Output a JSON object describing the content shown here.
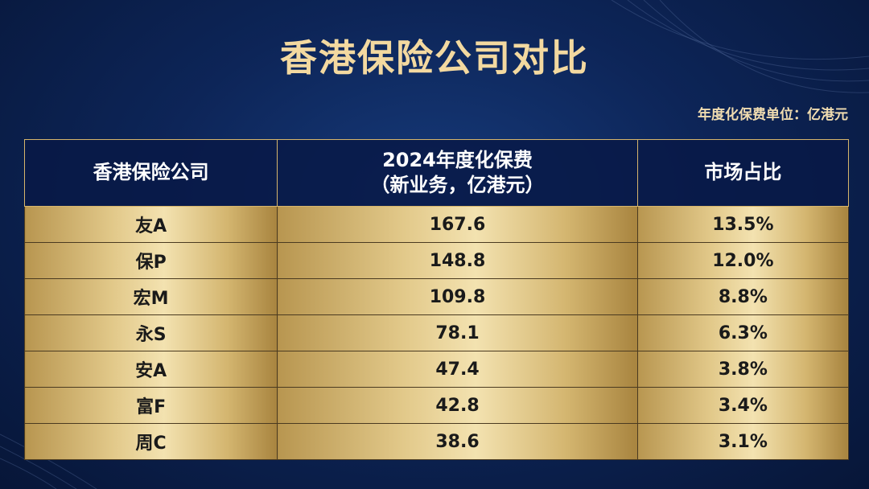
{
  "title": "香港保险公司对比",
  "unit_note": "年度化保费单位：亿港元",
  "table": {
    "headers": [
      [
        "香港保险公司"
      ],
      [
        "2024年度化保费",
        "（新业务，亿港元）"
      ],
      [
        "市场占比"
      ]
    ],
    "rows": [
      [
        "友A",
        "167.6",
        "13.5%"
      ],
      [
        "保P",
        "148.8",
        "12.0%"
      ],
      [
        "宏M",
        "109.8",
        "8.8%"
      ],
      [
        "永S",
        "78.1",
        "6.3%"
      ],
      [
        "安A",
        "47.4",
        "3.8%"
      ],
      [
        "富F",
        "42.8",
        "3.4%"
      ],
      [
        "周C",
        "38.6",
        "3.1%"
      ]
    ]
  }
}
